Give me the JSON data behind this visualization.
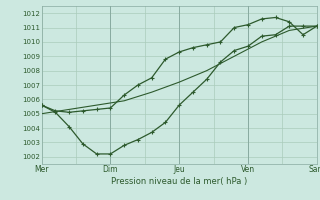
{
  "title": "",
  "xlabel": "Pression niveau de la mer( hPa )",
  "ylabel": "",
  "bg_color": "#cce8e0",
  "grid_color": "#aaccbb",
  "line_color": "#2d5a2d",
  "xlim": [
    0,
    10
  ],
  "ylim": [
    1001.5,
    1012.5
  ],
  "yticks": [
    1002,
    1003,
    1004,
    1005,
    1006,
    1007,
    1008,
    1009,
    1010,
    1011,
    1012
  ],
  "xtick_positions": [
    0,
    2.5,
    5.0,
    7.5,
    10.0
  ],
  "xtick_labels": [
    "Mer",
    "Dim",
    "Jeu",
    "Ven",
    "Sam"
  ],
  "vlines": [
    2.5,
    5.0,
    7.5
  ],
  "line1_x": [
    0,
    0.5,
    1.0,
    1.5,
    2.0,
    2.5,
    3.0,
    3.5,
    4.0,
    4.5,
    5.0,
    5.5,
    6.0,
    6.5,
    7.0,
    7.5,
    8.0,
    8.5,
    9.0,
    9.5,
    10.0
  ],
  "line1_y": [
    1005.6,
    1005.1,
    1004.1,
    1002.9,
    1002.2,
    1002.2,
    1002.8,
    1003.2,
    1003.7,
    1004.4,
    1005.6,
    1006.5,
    1007.4,
    1008.6,
    1009.4,
    1009.7,
    1010.4,
    1010.5,
    1011.1,
    1011.1,
    1011.1
  ],
  "line2_x": [
    0,
    0.5,
    1.0,
    1.5,
    2.0,
    2.5,
    3.0,
    3.5,
    4.0,
    4.5,
    5.0,
    5.5,
    6.0,
    6.5,
    7.0,
    7.5,
    8.0,
    8.5,
    9.0,
    9.5,
    10.0
  ],
  "line2_y": [
    1005.6,
    1005.2,
    1005.1,
    1005.2,
    1005.3,
    1005.4,
    1006.3,
    1007.0,
    1007.5,
    1008.8,
    1009.3,
    1009.6,
    1009.8,
    1010.0,
    1011.0,
    1011.2,
    1011.6,
    1011.7,
    1011.4,
    1010.5,
    1011.1
  ],
  "line3_x": [
    0,
    1.0,
    2.0,
    3.0,
    4.0,
    5.0,
    6.0,
    7.0,
    8.0,
    9.0,
    10.0
  ],
  "line3_y": [
    1005.0,
    1005.3,
    1005.6,
    1005.9,
    1006.5,
    1007.2,
    1008.0,
    1009.0,
    1010.0,
    1010.8,
    1011.1
  ]
}
